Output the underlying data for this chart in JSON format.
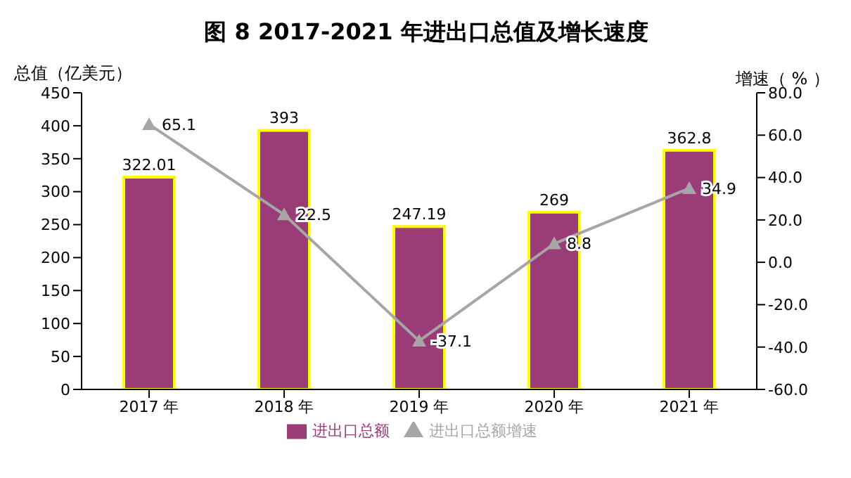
{
  "chart_data": {
    "type": "bar",
    "title": "图 8 2017-2021 年进出口总值及增长速度",
    "ylabel": "总值（亿美元）",
    "y2label": "增速（ % ）",
    "categories": [
      "2017 年",
      "2018 年",
      "2019 年",
      "2020 年",
      "2021 年"
    ],
    "series": [
      {
        "name": "进出口总额",
        "color": "#993c78",
        "values": [
          322.01,
          393,
          247.19,
          269,
          362.8
        ]
      },
      {
        "name": "进出口总额增速",
        "type": "line",
        "axis": "y2",
        "color": "#a6a6a6",
        "marker": "triangle",
        "values": [
          65.1,
          22.5,
          -37.1,
          8.8,
          34.9
        ]
      }
    ],
    "ylim": [
      0,
      450
    ],
    "yticks": [
      0,
      50,
      100,
      150,
      200,
      250,
      300,
      350,
      400,
      450
    ],
    "y2lim": [
      -60,
      80
    ],
    "y2ticks": [
      {
        "value": -60,
        "label": "-60.0"
      },
      {
        "value": -40,
        "label": "-40.0"
      },
      {
        "value": -20,
        "label": "-20.0"
      },
      {
        "value": 0,
        "label": "0.0"
      },
      {
        "value": 20,
        "label": "20.0"
      },
      {
        "value": 40,
        "label": "40.0"
      },
      {
        "value": 60,
        "label": "60.0"
      },
      {
        "value": 80,
        "label": "80.0"
      }
    ],
    "data_labels": true,
    "legend": "bottom"
  }
}
